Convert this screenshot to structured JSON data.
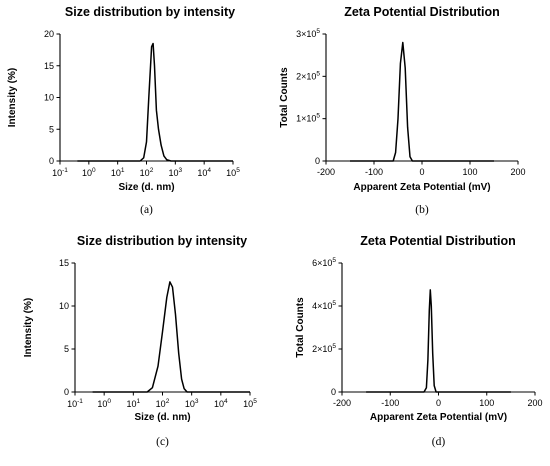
{
  "chart_data": [
    {
      "type": "line",
      "panel": "(a)",
      "title": "Size distribution by intensity",
      "xlabel": "Size (d. nm)",
      "ylabel": "Intensity (%)",
      "x_scale": "log",
      "xlim": [
        0.1,
        100000
      ],
      "ylim": [
        0,
        20
      ],
      "x_ticks": [
        {
          "value": 0.1,
          "base": "10",
          "exp": "-1"
        },
        {
          "value": 1,
          "base": "10",
          "exp": "0"
        },
        {
          "value": 10,
          "base": "10",
          "exp": "1"
        },
        {
          "value": 100,
          "base": "10",
          "exp": "2"
        },
        {
          "value": 1000,
          "base": "10",
          "exp": "3"
        },
        {
          "value": 10000,
          "base": "10",
          "exp": "4"
        },
        {
          "value": 100000,
          "base": "10",
          "exp": "5"
        }
      ],
      "y_ticks": [
        {
          "value": 0,
          "label": "0"
        },
        {
          "value": 5,
          "label": "5"
        },
        {
          "value": 10,
          "label": "10"
        },
        {
          "value": 15,
          "label": "15"
        },
        {
          "value": 20,
          "label": "20"
        }
      ],
      "series": [
        {
          "x": [
            0.4,
            60,
            80,
            100,
            120,
            150,
            170,
            190,
            220,
            260,
            320,
            400,
            500,
            700,
            3000,
            100000
          ],
          "y": [
            0,
            0,
            0.5,
            3,
            10,
            18,
            18.5,
            15,
            8,
            5,
            2.5,
            0.8,
            0.2,
            0,
            0,
            0
          ]
        }
      ]
    },
    {
      "type": "line",
      "panel": "(b)",
      "title": "Zeta Potential Distribution",
      "xlabel": "Apparent Zeta Potential (mV)",
      "ylabel": "Total Counts",
      "xlim": [
        -200,
        200
      ],
      "ylim": [
        0,
        300000
      ],
      "x_ticks": [
        {
          "value": -200,
          "label": "-200"
        },
        {
          "value": -100,
          "label": "-100"
        },
        {
          "value": 0,
          "label": "0"
        },
        {
          "value": 100,
          "label": "100"
        },
        {
          "value": 200,
          "label": "200"
        }
      ],
      "y_ticks": [
        {
          "value": 0,
          "base": "0",
          "exp": ""
        },
        {
          "value": 100000,
          "base": "1×10",
          "exp": "5"
        },
        {
          "value": 200000,
          "base": "2×10",
          "exp": "5"
        },
        {
          "value": 300000,
          "base": "3×10",
          "exp": "5"
        }
      ],
      "series": [
        {
          "x": [
            -150,
            -60,
            -55,
            -50,
            -45,
            -40,
            -35,
            -30,
            -25,
            -20,
            150
          ],
          "y": [
            0,
            0,
            20000,
            100000,
            230000,
            280000,
            220000,
            80000,
            10000,
            0,
            0
          ]
        }
      ]
    },
    {
      "type": "line",
      "panel": "(c)",
      "title": "Size distribution by intensity",
      "xlabel": "Size (d. nm)",
      "ylabel": "Intensity (%)",
      "x_scale": "log",
      "xlim": [
        0.1,
        100000
      ],
      "ylim": [
        0,
        15
      ],
      "x_ticks": [
        {
          "value": 0.1,
          "base": "10",
          "exp": "-1"
        },
        {
          "value": 1,
          "base": "10",
          "exp": "0"
        },
        {
          "value": 10,
          "base": "10",
          "exp": "1"
        },
        {
          "value": 100,
          "base": "10",
          "exp": "2"
        },
        {
          "value": 1000,
          "base": "10",
          "exp": "3"
        },
        {
          "value": 10000,
          "base": "10",
          "exp": "4"
        },
        {
          "value": 100000,
          "base": "10",
          "exp": "5"
        }
      ],
      "y_ticks": [
        {
          "value": 0,
          "label": "0"
        },
        {
          "value": 5,
          "label": "5"
        },
        {
          "value": 10,
          "label": "10"
        },
        {
          "value": 15,
          "label": "15"
        }
      ],
      "series": [
        {
          "x": [
            0.4,
            30,
            45,
            70,
            100,
            140,
            180,
            220,
            280,
            360,
            450,
            550,
            700,
            1000,
            100000
          ],
          "y": [
            0,
            0,
            0.5,
            3,
            7,
            11,
            12.8,
            12.2,
            9,
            4.5,
            1.5,
            0.4,
            0,
            0,
            0
          ]
        }
      ]
    },
    {
      "type": "line",
      "panel": "(d)",
      "title": "Zeta Potential Distribution",
      "xlabel": "Apparent Zeta Potential (mV)",
      "ylabel": "Total Counts",
      "xlim": [
        -200,
        200
      ],
      "ylim": [
        0,
        600000
      ],
      "x_ticks": [
        {
          "value": -200,
          "label": "-200"
        },
        {
          "value": -100,
          "label": "-100"
        },
        {
          "value": 0,
          "label": "0"
        },
        {
          "value": 100,
          "label": "100"
        },
        {
          "value": 200,
          "label": "200"
        }
      ],
      "y_ticks": [
        {
          "value": 0,
          "base": "0",
          "exp": ""
        },
        {
          "value": 200000,
          "base": "2×10",
          "exp": "5"
        },
        {
          "value": 400000,
          "base": "4×10",
          "exp": "5"
        },
        {
          "value": 600000,
          "base": "6×10",
          "exp": "5"
        }
      ],
      "series": [
        {
          "x": [
            -150,
            -30,
            -25,
            -22,
            -19,
            -17,
            -15,
            -12,
            -9,
            -5,
            150
          ],
          "y": [
            0,
            0,
            20000,
            150000,
            380000,
            475000,
            400000,
            180000,
            30000,
            0,
            0
          ]
        }
      ]
    }
  ]
}
